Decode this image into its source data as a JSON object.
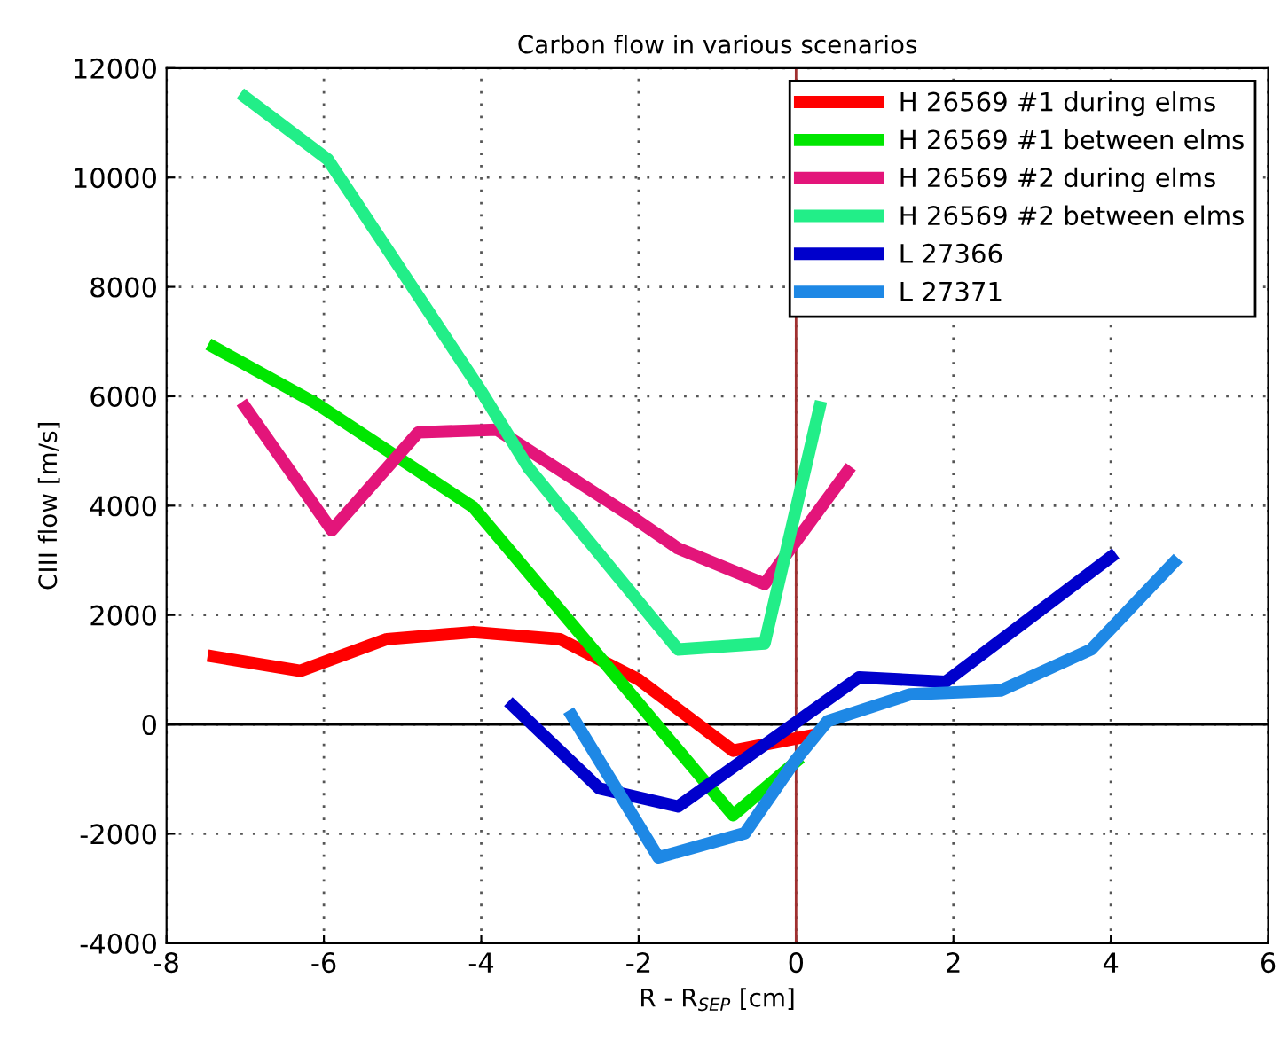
{
  "chart_data": {
    "type": "line",
    "title": "Carbon flow in various scenarios",
    "xlabel": "R - R$_{SEP}$ [cm]",
    "ylabel": "CIII flow [m/s]",
    "xlim": [
      -8,
      6
    ],
    "xticks": [
      -8,
      -6,
      -4,
      -2,
      0,
      2,
      4,
      6
    ],
    "ylim": [
      -4000,
      12000
    ],
    "yticks": [
      -4000,
      -2000,
      0,
      2000,
      4000,
      6000,
      8000,
      10000,
      12000
    ],
    "grid": true,
    "legend": "top right",
    "line_style": "solid",
    "marker": "none",
    "ref_lines": [
      {
        "axis": "x",
        "value": 0,
        "color": "#a03030"
      },
      {
        "axis": "y",
        "value": 0,
        "color": "#000000"
      }
    ],
    "series": [
      {
        "name": "H 26569 #1 during elms",
        "color": "#ff0000",
        "x": [
          -7.4,
          -6.3,
          -5.2,
          -4.1,
          -3.0,
          -2.0,
          -0.8,
          0.2
        ],
        "values": [
          1240,
          980,
          1560,
          1690,
          1560,
          820,
          -480,
          -200
        ]
      },
      {
        "name": "H 26569 #1 between elms",
        "color": "#00e600",
        "x": [
          -7.4,
          -6.1,
          -4.1,
          -0.8,
          0.0
        ],
        "values": [
          6900,
          5870,
          3970,
          -1660,
          -680
        ]
      },
      {
        "name": "H 26569 #2 during elms",
        "color": "#e3157a",
        "x": [
          -7.0,
          -5.9,
          -4.8,
          -3.8,
          -2.1,
          -1.5,
          -0.4,
          0.65
        ],
        "values": [
          5800,
          3550,
          5340,
          5390,
          3810,
          3220,
          2570,
          4620
        ]
      },
      {
        "name": "H 26569 #2 between elms",
        "color": "#22ee88",
        "x": [
          -7.0,
          -5.95,
          -4.9,
          -4.0,
          -3.4,
          -1.5,
          -0.4,
          0.3
        ],
        "values": [
          11470,
          10330,
          8050,
          6090,
          4690,
          1370,
          1480,
          5800
        ]
      },
      {
        "name": "L 27366",
        "color": "#0000cc",
        "x": [
          -3.6,
          -2.5,
          -1.5,
          0.8,
          1.9,
          4.0
        ],
        "values": [
          340,
          -1170,
          -1500,
          860,
          780,
          3060
        ]
      },
      {
        "name": "L 27371",
        "color": "#1e88e5",
        "x": [
          -2.85,
          -1.75,
          -0.65,
          0.0,
          0.4,
          1.45,
          2.6,
          3.75,
          4.8
        ],
        "values": [
          160,
          -2430,
          -1990,
          -640,
          60,
          550,
          620,
          1370,
          2960
        ]
      }
    ]
  }
}
